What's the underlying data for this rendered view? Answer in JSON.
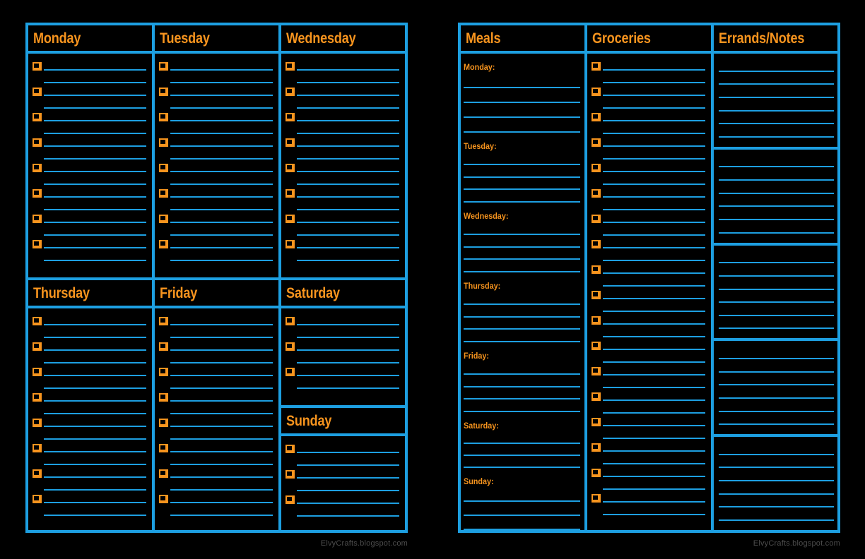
{
  "colors": {
    "accent_blue": "#1d9fe1",
    "accent_orange": "#f7941e",
    "background": "#000000",
    "watermark_gray": "#4d4d4d"
  },
  "left_page": {
    "top_row": [
      {
        "label": "Monday",
        "items": 8
      },
      {
        "label": "Tuesday",
        "items": 8
      },
      {
        "label": "Wednesday",
        "items": 8
      }
    ],
    "bottom_row": [
      {
        "label": "Thursday",
        "items": 8
      },
      {
        "label": "Friday",
        "items": 8
      }
    ],
    "saturday": {
      "label": "Saturday",
      "items": 3
    },
    "sunday": {
      "label": "Sunday",
      "items": 3
    },
    "footer": "ElvyCrafts.blogspot.com"
  },
  "right_page": {
    "meals_header": "Meals",
    "groceries_header": "Groceries",
    "errands_header": "Errands/Notes",
    "meals": [
      {
        "label": "Monday:",
        "lines": 4
      },
      {
        "label": "Tuesday:",
        "lines": 4
      },
      {
        "label": "Wednesday:",
        "lines": 4
      },
      {
        "label": "Thursday:",
        "lines": 4
      },
      {
        "label": "Friday:",
        "lines": 4
      },
      {
        "label": "Saturday:",
        "lines": 3
      },
      {
        "label": "Sunday:",
        "lines": 3
      }
    ],
    "groceries_items": 18,
    "errands_note_boxes": [
      6,
      6,
      6,
      6,
      6
    ],
    "footer": "ElvyCrafts.blogspot.com"
  }
}
